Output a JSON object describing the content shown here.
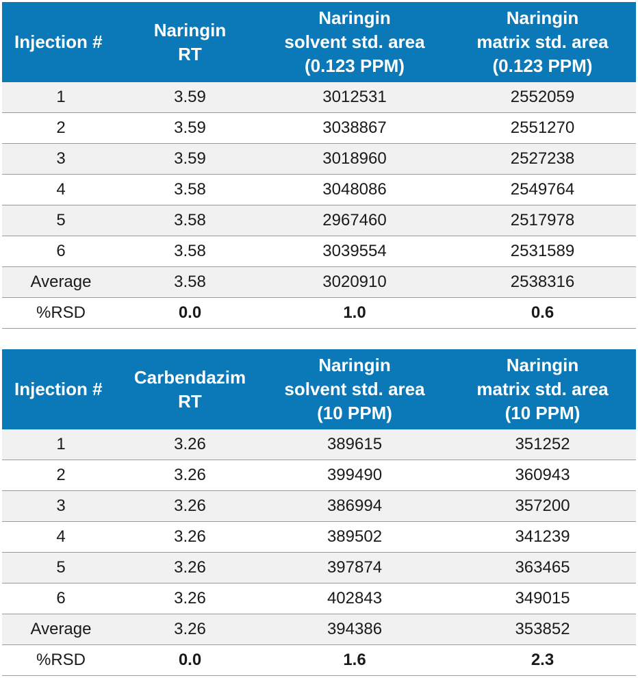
{
  "tables": [
    {
      "headers": [
        [
          "Injection #"
        ],
        [
          "Naringin",
          "RT"
        ],
        [
          "Naringin",
          "solvent std. area",
          "(0.123 PPM)"
        ],
        [
          "Naringin",
          "matrix std. area",
          "(0.123 PPM)"
        ]
      ],
      "rows": [
        [
          "1",
          "3.59",
          "3012531",
          "2552059"
        ],
        [
          "2",
          "3.59",
          "3038867",
          "2551270"
        ],
        [
          "3",
          "3.59",
          "3018960",
          "2527238"
        ],
        [
          "4",
          "3.58",
          "3048086",
          "2549764"
        ],
        [
          "5",
          "3.58",
          "2967460",
          "2517978"
        ],
        [
          "6",
          "3.58",
          "3039554",
          "2531589"
        ],
        [
          "Average",
          "3.58",
          "3020910",
          "2538316"
        ],
        [
          "%RSD",
          "0.0",
          "1.0",
          "0.6"
        ]
      ]
    },
    {
      "headers": [
        [
          "Injection #"
        ],
        [
          "Carbendazim",
          "RT"
        ],
        [
          "Naringin",
          "solvent std. area",
          "(10 PPM)"
        ],
        [
          "Naringin",
          "matrix std. area",
          "(10 PPM)"
        ]
      ],
      "rows": [
        [
          "1",
          "3.26",
          "389615",
          "351252"
        ],
        [
          "2",
          "3.26",
          "399490",
          "360943"
        ],
        [
          "3",
          "3.26",
          "386994",
          "357200"
        ],
        [
          "4",
          "3.26",
          "389502",
          "341239"
        ],
        [
          "5",
          "3.26",
          "397874",
          "363465"
        ],
        [
          "6",
          "3.26",
          "402843",
          "349015"
        ],
        [
          "Average",
          "3.26",
          "394386",
          "353852"
        ],
        [
          "%RSD",
          "0.0",
          "1.6",
          "2.3"
        ]
      ]
    }
  ],
  "colors": {
    "header_bg": "#0b78b8",
    "header_text": "#ffffff",
    "shaded_row": "#f1f1f1",
    "divider": "#9a9a9a"
  }
}
